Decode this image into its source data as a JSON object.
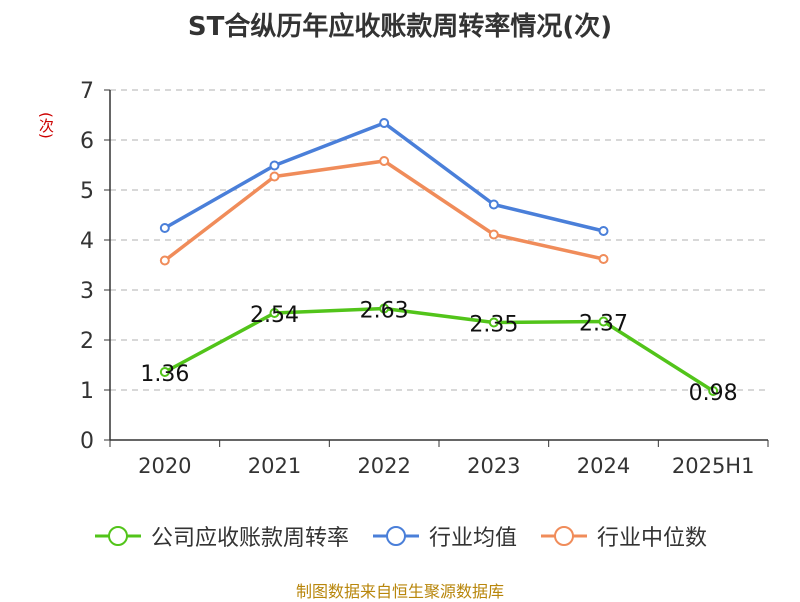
{
  "chart_data": {
    "type": "line",
    "title": "ST合纵历年应收账款周转率情况(次)",
    "ylabel": "(次)",
    "categories": [
      "2020",
      "2021",
      "2022",
      "2023",
      "2024",
      "2025H1"
    ],
    "ylim": [
      0,
      7
    ],
    "yticks": [
      "0",
      "1",
      "2",
      "3",
      "4",
      "5",
      "6",
      "7"
    ],
    "grid": true,
    "legend_position": "bottom",
    "series": [
      {
        "name": "公司应收账款周转率",
        "color": "#52c41a",
        "values": [
          1.36,
          2.54,
          2.63,
          2.35,
          2.37,
          0.98
        ],
        "labels": [
          "1.36",
          "2.54",
          "2.63",
          "2.35",
          "2.37",
          "0.98"
        ]
      },
      {
        "name": "行业均值",
        "color": "#4a7fd9",
        "values": [
          4.24,
          5.49,
          6.34,
          4.71,
          4.18,
          null
        ]
      },
      {
        "name": "行业中位数",
        "color": "#f08c5a",
        "values": [
          3.59,
          5.27,
          5.58,
          4.11,
          3.62,
          null
        ]
      }
    ]
  },
  "source": "制图数据来自恒生聚源数据库"
}
